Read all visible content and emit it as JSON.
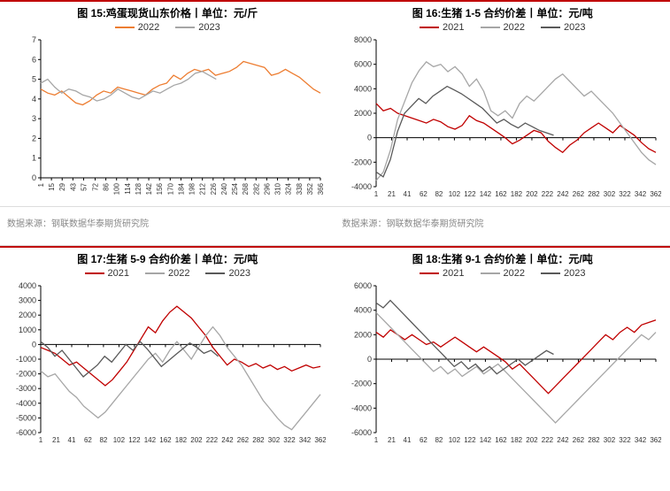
{
  "source_text": "数据来源：钢联数据华泰期货研究院",
  "colors": {
    "accent_red": "#c00000",
    "orange": "#ed7d31",
    "gray": "#a6a6a6",
    "darkgray": "#595959",
    "red": "#c00000",
    "axis": "#000000",
    "bg": "#ffffff"
  },
  "charts": {
    "c15": {
      "title": "图 15:鸡蛋现货山东价格丨单位：元/斤",
      "legend": [
        {
          "label": "2022",
          "color": "#ed7d31"
        },
        {
          "label": "2023",
          "color": "#a6a6a6"
        }
      ],
      "ylim": [
        0,
        7
      ],
      "ytick_step": 1,
      "xticks": [
        1,
        15,
        29,
        43,
        57,
        72,
        86,
        100,
        114,
        128,
        142,
        156,
        170,
        184,
        198,
        212,
        226,
        240,
        254,
        268,
        282,
        296,
        310,
        324,
        338,
        352,
        366
      ],
      "xmax": 366,
      "series": {
        "s2022": {
          "color": "#ed7d31",
          "xmax": 366,
          "y": [
            4.5,
            4.3,
            4.2,
            4.4,
            4.1,
            3.8,
            3.7,
            3.9,
            4.2,
            4.4,
            4.3,
            4.6,
            4.5,
            4.4,
            4.3,
            4.2,
            4.5,
            4.7,
            4.8,
            5.2,
            5.0,
            5.3,
            5.5,
            5.4,
            5.5,
            5.2,
            5.3,
            5.4,
            5.6,
            5.9,
            5.8,
            5.7,
            5.6,
            5.2,
            5.3,
            5.5,
            5.3,
            5.1,
            4.8,
            4.5,
            4.3
          ]
        },
        "s2023": {
          "color": "#a6a6a6",
          "xmax": 230,
          "y": [
            4.8,
            5.0,
            4.6,
            4.3,
            4.5,
            4.4,
            4.2,
            4.1,
            3.9,
            4.0,
            4.2,
            4.5,
            4.3,
            4.1,
            4.0,
            4.2,
            4.4,
            4.3,
            4.5,
            4.7,
            4.8,
            5.0,
            5.3,
            5.4,
            5.2,
            5.0
          ]
        }
      }
    },
    "c16": {
      "title": "图 16:生猪 1-5 合约价差丨单位：元/吨",
      "legend": [
        {
          "label": "2021",
          "color": "#c00000"
        },
        {
          "label": "2022",
          "color": "#a6a6a6"
        },
        {
          "label": "2023",
          "color": "#595959"
        }
      ],
      "ylim": [
        -4000,
        8000
      ],
      "ytick_step": 2000,
      "xticks": [
        1,
        21,
        41,
        62,
        82,
        102,
        122,
        142,
        162,
        182,
        202,
        222,
        242,
        262,
        282,
        302,
        322,
        342,
        362
      ],
      "xmax": 362,
      "series": {
        "s2021": {
          "color": "#c00000",
          "xmax": 362,
          "y": [
            2800,
            2200,
            2400,
            2000,
            1800,
            1600,
            1400,
            1200,
            1500,
            1300,
            900,
            700,
            1000,
            1800,
            1400,
            1200,
            800,
            400,
            0,
            -500,
            -200,
            200,
            600,
            400,
            -300,
            -800,
            -1200,
            -600,
            -200,
            400,
            800,
            1200,
            800,
            400,
            1000,
            600,
            200,
            -400,
            -900,
            -1200
          ]
        },
        "s2022": {
          "color": "#a6a6a6",
          "xmax": 362,
          "y": [
            -3500,
            -2800,
            -1000,
            1500,
            3000,
            4500,
            5500,
            6200,
            5800,
            6000,
            5400,
            5800,
            5200,
            4200,
            4800,
            3800,
            2200,
            1800,
            2200,
            1600,
            2800,
            3400,
            3000,
            3600,
            4200,
            4800,
            5200,
            4600,
            4000,
            3400,
            3800,
            3200,
            2600,
            2000,
            1200,
            400,
            -400,
            -1200,
            -1800,
            -2200
          ]
        },
        "s2023": {
          "color": "#595959",
          "xmax": 230,
          "y": [
            -2800,
            -3200,
            -1800,
            500,
            2000,
            2600,
            3200,
            2800,
            3400,
            3800,
            4200,
            3900,
            3600,
            3200,
            2800,
            2400,
            1800,
            1200,
            1500,
            1100,
            800,
            1200,
            900,
            600,
            400,
            200
          ]
        }
      }
    },
    "c17": {
      "title": "图 17:生猪 5-9 合约价差丨单位：元/吨",
      "legend": [
        {
          "label": "2021",
          "color": "#c00000"
        },
        {
          "label": "2022",
          "color": "#a6a6a6"
        },
        {
          "label": "2023",
          "color": "#595959"
        }
      ],
      "ylim": [
        -6000,
        4000
      ],
      "ytick_step": 1000,
      "xticks": [
        1,
        21,
        41,
        62,
        82,
        102,
        122,
        142,
        162,
        182,
        202,
        222,
        242,
        262,
        282,
        302,
        322,
        342,
        362
      ],
      "xmax": 362,
      "series": {
        "s2021": {
          "color": "#c00000",
          "xmax": 362,
          "y": [
            -200,
            -400,
            -600,
            -1000,
            -1400,
            -1200,
            -1600,
            -2000,
            -2400,
            -2800,
            -2400,
            -1800,
            -1200,
            -400,
            400,
            1200,
            800,
            1600,
            2200,
            2600,
            2200,
            1800,
            1200,
            600,
            -200,
            -800,
            -1400,
            -1000,
            -1200,
            -1500,
            -1300,
            -1600,
            -1400,
            -1700,
            -1500,
            -1800,
            -1600,
            -1400,
            -1600,
            -1500
          ]
        },
        "s2022": {
          "color": "#a6a6a6",
          "xmax": 362,
          "y": [
            -1800,
            -2200,
            -2000,
            -2600,
            -3200,
            -3600,
            -4200,
            -4600,
            -5000,
            -4600,
            -4000,
            -3400,
            -2800,
            -2200,
            -1600,
            -1000,
            -600,
            -1200,
            -400,
            200,
            -400,
            -1000,
            -200,
            600,
            1200,
            600,
            -200,
            -800,
            -1400,
            -2200,
            -3000,
            -3800,
            -4400,
            -5000,
            -5500,
            -5800,
            -5200,
            -4600,
            -4000,
            -3400
          ]
        },
        "s2023": {
          "color": "#595959",
          "xmax": 230,
          "y": [
            200,
            -200,
            -800,
            -400,
            -1000,
            -1600,
            -2200,
            -1800,
            -1400,
            -800,
            -1200,
            -600,
            0,
            -400,
            200,
            -300,
            -900,
            -1500,
            -1100,
            -700,
            -300,
            100,
            -200,
            -600,
            -400,
            -800
          ]
        }
      }
    },
    "c18": {
      "title": "图 18:生猪 9-1 合约价差丨单位：元/吨",
      "legend": [
        {
          "label": "2021",
          "color": "#c00000"
        },
        {
          "label": "2022",
          "color": "#a6a6a6"
        },
        {
          "label": "2023",
          "color": "#595959"
        }
      ],
      "ylim": [
        -6000,
        6000
      ],
      "ytick_step": 2000,
      "xticks": [
        1,
        21,
        41,
        62,
        82,
        102,
        122,
        142,
        162,
        182,
        202,
        222,
        242,
        262,
        282,
        302,
        322,
        342,
        362
      ],
      "xmax": 362,
      "series": {
        "s2021": {
          "color": "#c00000",
          "xmax": 362,
          "y": [
            2200,
            1800,
            2400,
            2000,
            1600,
            2000,
            1600,
            1200,
            1400,
            1000,
            1400,
            1800,
            1400,
            1000,
            600,
            1000,
            600,
            200,
            -200,
            -800,
            -400,
            -1000,
            -1600,
            -2200,
            -2800,
            -2200,
            -1600,
            -1000,
            -400,
            200,
            800,
            1400,
            2000,
            1600,
            2200,
            2600,
            2200,
            2800,
            3000,
            3200
          ]
        },
        "s2022": {
          "color": "#a6a6a6",
          "xmax": 362,
          "y": [
            3800,
            3200,
            2600,
            2000,
            1400,
            800,
            200,
            -400,
            -1000,
            -600,
            -1200,
            -800,
            -1400,
            -1000,
            -600,
            -1200,
            -800,
            -400,
            -1000,
            -1600,
            -2200,
            -2800,
            -3400,
            -4000,
            -4600,
            -5200,
            -4600,
            -4000,
            -3400,
            -2800,
            -2200,
            -1600,
            -1000,
            -400,
            200,
            800,
            1400,
            2000,
            1600,
            2200
          ]
        },
        "s2023": {
          "color": "#595959",
          "xmax": 230,
          "y": [
            4600,
            4200,
            4800,
            4200,
            3600,
            3000,
            2400,
            1800,
            1200,
            600,
            0,
            -600,
            -200,
            -800,
            -400,
            -1000,
            -600,
            -1200,
            -800,
            -400,
            0,
            -500,
            -100,
            300,
            700,
            400
          ]
        }
      }
    }
  }
}
